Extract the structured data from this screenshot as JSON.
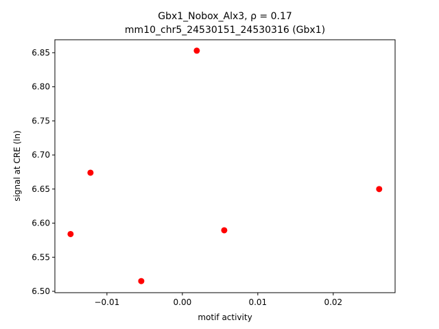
{
  "chart_data": {
    "type": "scatter",
    "title": [
      "Gbx1_Nobox_Alx3, ρ = 0.17",
      "mm10_chr5_24530151_24530316 (Gbx1)"
    ],
    "xlabel": "motif activity",
    "ylabel": "signal at CRE (ln)",
    "x": [
      -0.01482,
      -0.01218,
      -0.00545,
      0.00191,
      0.00555,
      0.02609
    ],
    "values": [
      6.584,
      6.674,
      6.515,
      6.853,
      6.5895,
      6.65
    ],
    "color": "#ff0000",
    "xlim": [
      -0.0169,
      0.0282
    ],
    "ylim": [
      6.498,
      6.869
    ],
    "xticks": [
      {
        "value": -0.01,
        "label": "−0.01"
      },
      {
        "value": 0,
        "label": "0.00"
      },
      0.01,
      0.02
    ],
    "yticks": [
      {
        "value": 6.5,
        "label": "6.50"
      },
      6.55,
      {
        "value": 6.6,
        "label": "6.60"
      },
      6.65,
      {
        "value": 6.7,
        "label": "6.70"
      },
      6.75,
      {
        "value": 6.8,
        "label": "6.80"
      },
      6.85
    ],
    "grid": false
  }
}
